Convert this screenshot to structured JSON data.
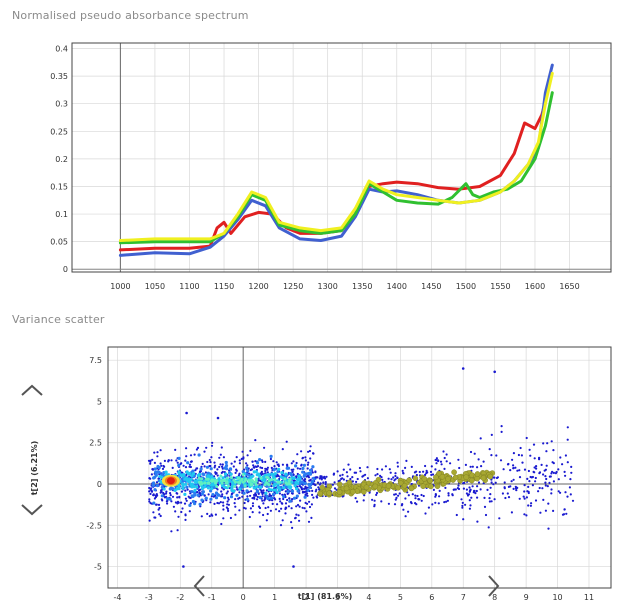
{
  "spectrum": {
    "title": "Normalised pseudo absorbance spectrum"
  },
  "scatter": {
    "title": "Variance scatter"
  },
  "colors": {
    "red": "#e02020",
    "blue": "#4060d0",
    "green": "#30c030",
    "yellow": "#f0f020",
    "grid": "#d8d8d8",
    "frame": "#555555",
    "scatter_points": "#1a1ad0",
    "secondary_points": "#a8a832"
  },
  "icons": {
    "up": "chevron-up",
    "down": "chevron-down",
    "left": "chevron-left",
    "right": "chevron-right"
  },
  "chart_data": [
    {
      "type": "line",
      "title": "Normalised pseudo absorbance spectrum",
      "xlabel": "",
      "ylabel": "",
      "xlim": [
        930,
        1710
      ],
      "ylim": [
        -0.005,
        0.41
      ],
      "x_ticks": [
        1000,
        1050,
        1100,
        1150,
        1200,
        1250,
        1300,
        1350,
        1400,
        1450,
        1500,
        1550,
        1600,
        1650
      ],
      "y_ticks": [
        0,
        0.05,
        0.1,
        0.15,
        0.2,
        0.25,
        0.3,
        0.35,
        0.4
      ],
      "grid": true,
      "series": [
        {
          "color": "red",
          "x": [
            1000,
            1050,
            1100,
            1130,
            1140,
            1150,
            1160,
            1180,
            1200,
            1220,
            1240,
            1260,
            1290,
            1320,
            1340,
            1360,
            1380,
            1400,
            1430,
            1460,
            1490,
            1520,
            1550,
            1570,
            1585,
            1600,
            1610,
            1620
          ],
          "y": [
            0.035,
            0.038,
            0.038,
            0.042,
            0.075,
            0.085,
            0.065,
            0.095,
            0.103,
            0.1,
            0.075,
            0.065,
            0.065,
            0.07,
            0.1,
            0.15,
            0.155,
            0.158,
            0.155,
            0.148,
            0.145,
            0.15,
            0.17,
            0.21,
            0.265,
            0.255,
            0.28,
            0.33
          ]
        },
        {
          "color": "blue",
          "x": [
            1000,
            1050,
            1100,
            1130,
            1150,
            1170,
            1190,
            1210,
            1230,
            1260,
            1290,
            1320,
            1340,
            1360,
            1380,
            1400,
            1430,
            1460,
            1490,
            1520,
            1550,
            1570,
            1590,
            1605,
            1615,
            1625
          ],
          "y": [
            0.025,
            0.03,
            0.028,
            0.04,
            0.06,
            0.09,
            0.125,
            0.115,
            0.075,
            0.055,
            0.052,
            0.06,
            0.095,
            0.145,
            0.14,
            0.142,
            0.135,
            0.125,
            0.12,
            0.125,
            0.14,
            0.16,
            0.19,
            0.22,
            0.32,
            0.37
          ]
        },
        {
          "color": "green",
          "x": [
            1000,
            1050,
            1100,
            1130,
            1150,
            1170,
            1190,
            1210,
            1230,
            1260,
            1290,
            1320,
            1340,
            1360,
            1380,
            1400,
            1430,
            1460,
            1480,
            1500,
            1510,
            1520,
            1540,
            1560,
            1580,
            1600,
            1615,
            1625
          ],
          "y": [
            0.048,
            0.05,
            0.05,
            0.05,
            0.065,
            0.095,
            0.135,
            0.125,
            0.08,
            0.07,
            0.065,
            0.07,
            0.1,
            0.155,
            0.14,
            0.125,
            0.12,
            0.118,
            0.13,
            0.155,
            0.135,
            0.13,
            0.14,
            0.145,
            0.16,
            0.2,
            0.26,
            0.32
          ]
        },
        {
          "color": "yellow",
          "x": [
            1000,
            1050,
            1100,
            1130,
            1150,
            1170,
            1190,
            1210,
            1230,
            1260,
            1290,
            1320,
            1340,
            1360,
            1380,
            1400,
            1430,
            1460,
            1490,
            1520,
            1550,
            1570,
            1590,
            1605,
            1615,
            1625
          ],
          "y": [
            0.052,
            0.055,
            0.055,
            0.055,
            0.065,
            0.1,
            0.14,
            0.13,
            0.085,
            0.075,
            0.07,
            0.075,
            0.11,
            0.16,
            0.145,
            0.135,
            0.13,
            0.125,
            0.12,
            0.125,
            0.14,
            0.16,
            0.19,
            0.23,
            0.3,
            0.355
          ]
        }
      ]
    },
    {
      "type": "scatter",
      "title": "Variance scatter",
      "xlabel": "t[1] (81.6%)",
      "ylabel": "t[2] (6.21%)",
      "xlim": [
        -4.3,
        11.7
      ],
      "ylim": [
        -6.3,
        8.3
      ],
      "x_ticks": [
        -4,
        -3,
        -2,
        -1,
        0,
        1,
        2,
        3,
        4,
        5,
        6,
        7,
        8,
        9,
        10,
        11
      ],
      "y_ticks": [
        7.5,
        5,
        2.5,
        0,
        -2.5,
        -5
      ],
      "grid": true,
      "dense_cloud": {
        "x_range": [
          -3.0,
          2.3
        ],
        "center": [
          -2.3,
          0.2
        ],
        "spread_y": 0.9
      },
      "sparse_cloud": {
        "x_range": [
          2.3,
          10.5
        ],
        "spread_y": 1.2
      },
      "trend_points": {
        "x_range": [
          2.4,
          8.0
        ],
        "y_start": -0.5,
        "y_end": 0.6
      },
      "outliers": [
        [
          7.0,
          7.0
        ],
        [
          8.0,
          6.8
        ],
        [
          -1.8,
          4.3
        ],
        [
          -0.8,
          4.0
        ],
        [
          -1.9,
          -5.0
        ],
        [
          1.6,
          -5.0
        ]
      ]
    }
  ]
}
